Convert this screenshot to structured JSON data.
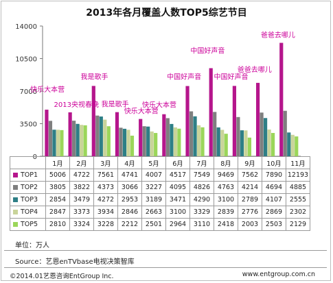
{
  "chart_data": {
    "type": "bar",
    "title": "2013年各月覆盖人数TOP5综艺节目",
    "categories": [
      "1月",
      "2月",
      "3月",
      "4月",
      "5月",
      "6月",
      "7月",
      "8月",
      "9月",
      "10月",
      "11月"
    ],
    "ylim": [
      0,
      14000
    ],
    "yticks": [
      "0",
      "3500",
      "7000",
      "10500",
      "14000"
    ],
    "ytick_values": [
      0,
      3500,
      7000,
      10500,
      14000
    ],
    "grid": false,
    "legend": "table-below",
    "series": [
      {
        "name": "TOP1",
        "color": "#b5168c",
        "values": [
          5006,
          4722,
          7561,
          4741,
          4007,
          4517,
          7549,
          9469,
          7562,
          7890,
          12193
        ]
      },
      {
        "name": "TOP2",
        "color": "#7f7f7f",
        "values": [
          3805,
          3822,
          4373,
          3066,
          3227,
          4095,
          4826,
          4763,
          4214,
          4694,
          4885
        ]
      },
      {
        "name": "TOP3",
        "color": "#2e7f86",
        "values": [
          2854,
          3479,
          4272,
          2953,
          3189,
          3471,
          4290,
          3100,
          2789,
          4107,
          2555
        ]
      },
      {
        "name": "TOP4",
        "color": "#c9d49a",
        "values": [
          2847,
          3373,
          3934,
          2846,
          2663,
          3100,
          3329,
          2839,
          2776,
          2869,
          2302
        ]
      },
      {
        "name": "TOP5",
        "color": "#9bd65a",
        "values": [
          2810,
          3324,
          3228,
          2212,
          2501,
          2964,
          3110,
          2418,
          2003,
          2503,
          2129
        ]
      }
    ],
    "annotations": [
      {
        "text": "快乐大本营",
        "category": "1月"
      },
      {
        "text": "2013央视春晚",
        "category": "2月"
      },
      {
        "text": "我是歌手",
        "category": "3月"
      },
      {
        "text": "我是歌手",
        "category": "4月"
      },
      {
        "text": "快乐大本营",
        "category": "5月"
      },
      {
        "text": "快乐大本营",
        "category": "6月"
      },
      {
        "text": "中国好声音",
        "category": "7月"
      },
      {
        "text": "中国好声音",
        "category": "8月"
      },
      {
        "text": "中国好声音",
        "category": "9月"
      },
      {
        "text": "爸爸去哪儿",
        "category": "10月"
      },
      {
        "text": "爸爸去哪儿",
        "category": "11月"
      }
    ]
  },
  "footer": {
    "unit": "单位：万人",
    "source": "Source：艺恩enTVbase电视决策智库",
    "copyright": "©2014.01艺恩咨询EntGroup Inc.",
    "website": "www.entgroup.com.cn"
  }
}
